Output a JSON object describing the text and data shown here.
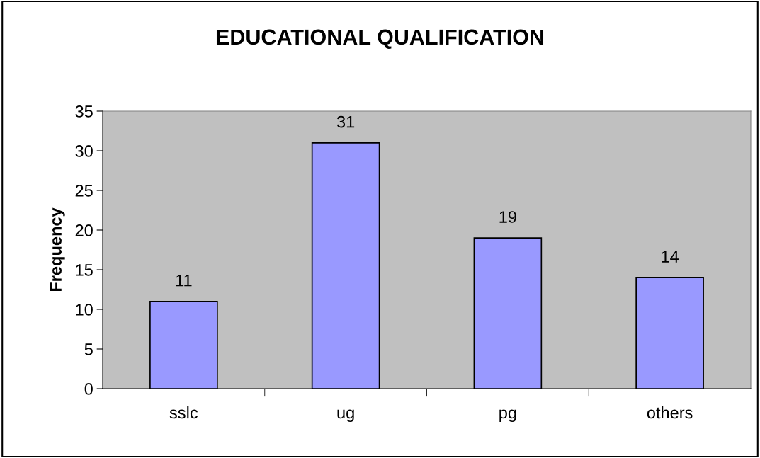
{
  "chart_data": {
    "type": "bar",
    "title": "EDUCATIONAL QUALIFICATION",
    "ylabel": "Frequency",
    "categories": [
      "sslc",
      "ug",
      "pg",
      "others"
    ],
    "values": [
      11,
      31,
      19,
      14
    ],
    "color": "#9999ff",
    "ylim": [
      0,
      35
    ],
    "yticks": [
      0,
      5,
      10,
      15,
      20,
      25,
      30,
      35
    ],
    "grid": false,
    "data_labels": true
  }
}
